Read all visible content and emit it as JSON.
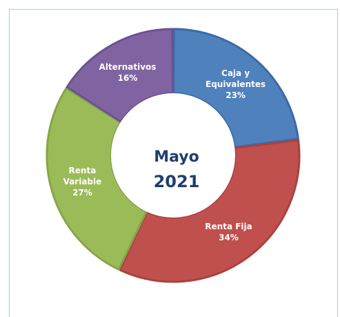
{
  "chart_data": {
    "type": "pie",
    "center_title": "Mayo",
    "center_year": "2021",
    "categories": [
      "Caja y Equivalentes",
      "Renta Fija",
      "Renta Variable",
      "Alternativos"
    ],
    "label_lines": [
      [
        "Caja y",
        "Equivalentes"
      ],
      [
        "Renta Fija"
      ],
      [
        "Renta",
        "Variable"
      ],
      [
        "Alternativos"
      ]
    ],
    "percent_labels": [
      "23%",
      "34%",
      "27%",
      "16%"
    ],
    "values": [
      23,
      34,
      27,
      16
    ],
    "colors": [
      "#4f81bd",
      "#c0504d",
      "#9bbb59",
      "#8064a2"
    ],
    "border_colors": [
      "#3a6aa6",
      "#a84340",
      "#86a548",
      "#6b5290"
    ],
    "style": "donut"
  }
}
